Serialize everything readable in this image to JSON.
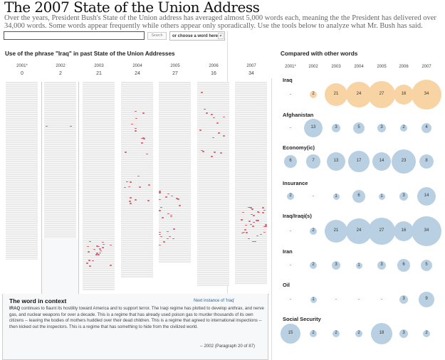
{
  "header": {
    "title": "The 2007 State of the Union Address",
    "intro": "Over the years, President Bush's State of the Union address has averaged almost 5,000 words each, meaning the the President has delivered over 34,000 words. Some words appear frequently while others appear only sporadically. Use the tools below to analyze what Mr. Bush has said."
  },
  "controls": {
    "search_value": "",
    "button_label": "Search",
    "select_value": "or choose a word here."
  },
  "left": {
    "title": "Use of the phrase \"Iraq\" in past State of the Union Addresses",
    "years": [
      "2001*",
      "2002",
      "2003",
      "2004",
      "2005",
      "2006",
      "2007"
    ],
    "counts": [
      0,
      2,
      21,
      24,
      27,
      16,
      34
    ],
    "selected_year": "2002",
    "highlight_color": "#d8606a"
  },
  "context": {
    "title": "The word in context",
    "next_link": "Next instance of 'Iraq'",
    "keyword": "IRAQ",
    "text": " continues to flaunt its hostility toward America and to support terror. The Iraqi regime has plotted to develop anthrax, and nerve gas, and nuclear weapons for over a decade. This is a regime that has already used poison gas to murder thousands of its own citizens -- leaving the bodies of mothers huddled over their dead children. This is a regime that agreed to international inspections -- then kicked out the inspectors. This is a regime that has something to hide from the civilized world.",
    "source": "-- 2002 (Paragraph 20 of 87)"
  },
  "right": {
    "title": "Compared with other words",
    "years": [
      "2001*",
      "2002",
      "2003",
      "2004",
      "2005",
      "2006",
      "2007"
    ],
    "colors": {
      "selected": "#f8d4a4",
      "other": "#b8d0e2"
    },
    "rows": [
      {
        "label": "Iraq",
        "values": [
          null,
          2,
          21,
          24,
          27,
          16,
          34
        ],
        "selected": true
      },
      {
        "label": "Afghanistan",
        "values": [
          null,
          13,
          3,
          5,
          3,
          2,
          4
        ]
      },
      {
        "label": "Economy(ic)",
        "values": [
          6,
          7,
          13,
          17,
          14,
          23,
          8
        ]
      },
      {
        "label": "Insurance",
        "values": [
          2,
          null,
          1,
          6,
          1,
          3,
          14
        ]
      },
      {
        "label": "Iraq/Iraqi(s)",
        "values": [
          null,
          2,
          21,
          24,
          27,
          16,
          34
        ]
      },
      {
        "label": "Iran",
        "values": [
          null,
          2,
          3,
          1,
          3,
          6,
          5
        ]
      },
      {
        "label": "Oil",
        "values": [
          null,
          1,
          null,
          null,
          null,
          3,
          9
        ]
      },
      {
        "label": "Social Security",
        "values": [
          15,
          2,
          2,
          2,
          18,
          3,
          2
        ]
      }
    ],
    "missing_symbol": "-"
  }
}
